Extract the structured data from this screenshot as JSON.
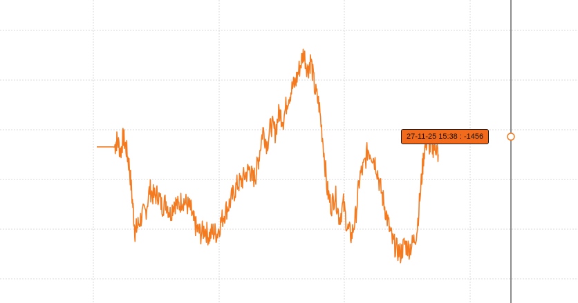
{
  "colors": {
    "line": "#F47A20",
    "line_mid": "#F0924E",
    "grid": "#D8D8D8",
    "tooltip_bg": "#F26A1B",
    "cursor": "#1A1A1A",
    "background": "#FFFFFF"
  },
  "tooltip": {
    "date": "27-11-25 15:38",
    "separator": " : ",
    "value": "-1456",
    "text": "27-11-25 15:38 : -1456"
  },
  "chart_data": {
    "type": "line",
    "title": "",
    "xlabel": "",
    "ylabel": "",
    "grid": true,
    "legend": "none",
    "hover_value": -1456,
    "series": [
      {
        "values": [
          [
            0.0,
            0.0
          ],
          [
            0.035,
            0.0
          ],
          [
            0.04,
            0.15
          ],
          [
            0.047,
            -0.1
          ],
          [
            0.052,
            0.2
          ],
          [
            0.058,
            -0.05
          ],
          [
            0.064,
            -0.4
          ],
          [
            0.07,
            -1.1
          ],
          [
            0.075,
            -1.7
          ],
          [
            0.08,
            -1.6
          ],
          [
            0.088,
            -1.4
          ],
          [
            0.096,
            -1.3
          ],
          [
            0.104,
            -0.85
          ],
          [
            0.112,
            -1.0
          ],
          [
            0.12,
            -0.95
          ],
          [
            0.128,
            -1.2
          ],
          [
            0.136,
            -1.1
          ],
          [
            0.144,
            -1.35
          ],
          [
            0.152,
            -1.1
          ],
          [
            0.16,
            -1.2
          ],
          [
            0.168,
            -1.05
          ],
          [
            0.176,
            -1.15
          ],
          [
            0.184,
            -1.25
          ],
          [
            0.19,
            -1.5
          ],
          [
            0.196,
            -1.65
          ],
          [
            0.204,
            -1.75
          ],
          [
            0.212,
            -1.65
          ],
          [
            0.22,
            -1.8
          ],
          [
            0.228,
            -1.7
          ],
          [
            0.236,
            -1.75
          ],
          [
            0.244,
            -1.5
          ],
          [
            0.252,
            -1.3
          ],
          [
            0.26,
            -1.15
          ],
          [
            0.268,
            -0.95
          ],
          [
            0.276,
            -0.75
          ],
          [
            0.284,
            -0.7
          ],
          [
            0.292,
            -0.55
          ],
          [
            0.3,
            -0.45
          ],
          [
            0.306,
            -0.65
          ],
          [
            0.312,
            -0.55
          ],
          [
            0.318,
            -0.2
          ],
          [
            0.326,
            0.35
          ],
          [
            0.334,
            0.05
          ],
          [
            0.342,
            0.45
          ],
          [
            0.35,
            0.3
          ],
          [
            0.358,
            0.7
          ],
          [
            0.366,
            0.55
          ],
          [
            0.374,
            0.95
          ],
          [
            0.382,
            1.15
          ],
          [
            0.39,
            1.3
          ],
          [
            0.398,
            1.6
          ],
          [
            0.406,
            1.9
          ],
          [
            0.414,
            1.55
          ],
          [
            0.42,
            1.75
          ],
          [
            0.428,
            1.15
          ],
          [
            0.436,
            0.85
          ],
          [
            0.444,
            0.1
          ],
          [
            0.452,
            -0.85
          ],
          [
            0.46,
            -1.2
          ],
          [
            0.468,
            -0.95
          ],
          [
            0.476,
            -1.45
          ],
          [
            0.484,
            -1.15
          ],
          [
            0.492,
            -1.65
          ],
          [
            0.5,
            -1.8
          ],
          [
            0.508,
            -1.4
          ],
          [
            0.516,
            -0.6
          ],
          [
            0.524,
            -0.4
          ],
          [
            0.532,
            -0.05
          ],
          [
            0.54,
            -0.15
          ],
          [
            0.548,
            -0.35
          ],
          [
            0.556,
            -0.8
          ],
          [
            0.564,
            -1.15
          ],
          [
            0.572,
            -1.55
          ],
          [
            0.58,
            -1.9
          ],
          [
            0.588,
            -2.05
          ],
          [
            0.596,
            -2.15
          ],
          [
            0.604,
            -1.95
          ],
          [
            0.612,
            -2.05
          ],
          [
            0.62,
            -1.95
          ],
          [
            0.628,
            -1.7
          ],
          [
            0.636,
            -0.8
          ],
          [
            0.642,
            -0.1
          ],
          [
            0.648,
            0.15
          ],
          [
            0.654,
            0.0
          ],
          [
            0.66,
            0.0
          ],
          [
            0.666,
            0.0
          ],
          [
            0.67,
            -0.15
          ]
        ]
      }
    ],
    "ylim": [
      -2.6,
      2.4
    ]
  }
}
